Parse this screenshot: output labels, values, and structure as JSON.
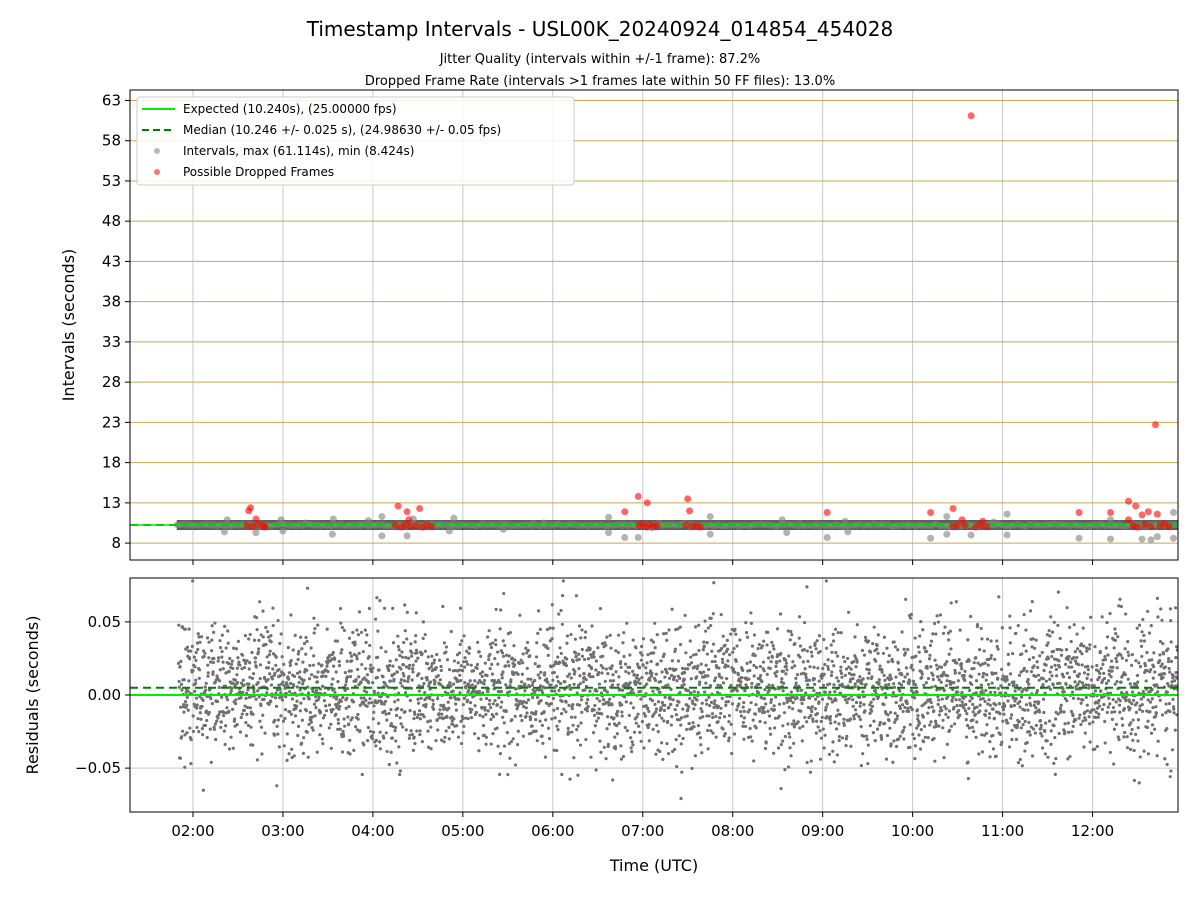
{
  "chart_data": {
    "type": "scatter",
    "title": "Timestamp Intervals - USL00K_20240924_014854_454028",
    "subtitle_lines": [
      "Jitter Quality (intervals within +/-1 frame): 87.2%",
      "Dropped Frame Rate (intervals >1 frames late within 50 FF files): 13.0%"
    ],
    "xlabel": "Time (UTC)",
    "x_ticks": [
      "02:00",
      "03:00",
      "04:00",
      "05:00",
      "06:00",
      "07:00",
      "08:00",
      "09:00",
      "10:00",
      "11:00",
      "12:00"
    ],
    "x_range_hours": [
      1.3,
      12.95
    ],
    "top_panel": {
      "ylabel": "Intervals (seconds)",
      "ylim": [
        5.9,
        64.3
      ],
      "yticks": [
        8,
        13,
        18,
        23,
        28,
        33,
        38,
        43,
        48,
        53,
        58,
        63
      ],
      "grid": true,
      "legend_position": "upper-left",
      "legend": [
        "Expected (10.240s), (25.00000 fps)",
        "Median (10.246 +/- 0.025 s), (24.98630 +/- 0.05 fps)",
        "Intervals, max (61.114s), min (8.424s)",
        "Possible Dropped Frames"
      ],
      "expected_value": 10.24,
      "median_value": 10.246,
      "series_start": 1.82,
      "series_end": 12.95,
      "sample_step_hours": 0.002844,
      "interval_outliers": [
        {
          "t": 2.35,
          "v": 9.4
        },
        {
          "t": 2.38,
          "v": 10.9
        },
        {
          "t": 2.7,
          "v": 9.3
        },
        {
          "t": 2.98,
          "v": 10.9
        },
        {
          "t": 3.0,
          "v": 9.5
        },
        {
          "t": 3.25,
          "v": 10.5
        },
        {
          "t": 3.55,
          "v": 9.1
        },
        {
          "t": 3.56,
          "v": 11.0
        },
        {
          "t": 3.95,
          "v": 10.8
        },
        {
          "t": 4.1,
          "v": 8.9
        },
        {
          "t": 4.1,
          "v": 11.3
        },
        {
          "t": 4.38,
          "v": 8.9
        },
        {
          "t": 4.45,
          "v": 11.0
        },
        {
          "t": 4.85,
          "v": 9.5
        },
        {
          "t": 4.9,
          "v": 11.1
        },
        {
          "t": 5.45,
          "v": 9.7
        },
        {
          "t": 5.9,
          "v": 10.5
        },
        {
          "t": 6.62,
          "v": 9.3
        },
        {
          "t": 6.62,
          "v": 11.2
        },
        {
          "t": 6.8,
          "v": 8.7
        },
        {
          "t": 6.95,
          "v": 8.7
        },
        {
          "t": 7.1,
          "v": 9.9
        },
        {
          "t": 7.75,
          "v": 9.1
        },
        {
          "t": 7.75,
          "v": 11.3
        },
        {
          "t": 8.55,
          "v": 10.9
        },
        {
          "t": 8.6,
          "v": 9.3
        },
        {
          "t": 9.05,
          "v": 8.7
        },
        {
          "t": 9.25,
          "v": 10.7
        },
        {
          "t": 9.28,
          "v": 9.4
        },
        {
          "t": 9.95,
          "v": 10.3
        },
        {
          "t": 10.2,
          "v": 8.6
        },
        {
          "t": 10.38,
          "v": 9.1
        },
        {
          "t": 10.38,
          "v": 11.3
        },
        {
          "t": 10.65,
          "v": 9.0
        },
        {
          "t": 10.9,
          "v": 10.6
        },
        {
          "t": 11.05,
          "v": 9.0
        },
        {
          "t": 11.05,
          "v": 11.6
        },
        {
          "t": 11.85,
          "v": 8.6
        },
        {
          "t": 12.2,
          "v": 8.5
        },
        {
          "t": 12.2,
          "v": 10.9
        },
        {
          "t": 12.55,
          "v": 8.5
        },
        {
          "t": 12.65,
          "v": 8.4
        },
        {
          "t": 12.72,
          "v": 8.8
        },
        {
          "t": 12.9,
          "v": 8.6
        },
        {
          "t": 12.9,
          "v": 11.8
        }
      ],
      "dropped_frames": [
        {
          "t": 2.62,
          "v": 12.0
        },
        {
          "t": 2.64,
          "v": 12.4
        },
        {
          "t": 2.7,
          "v": 11.0
        },
        {
          "t": 2.6,
          "v": 10.2
        },
        {
          "t": 2.66,
          "v": 10.1
        },
        {
          "t": 2.72,
          "v": 10.3
        },
        {
          "t": 2.78,
          "v": 10.2
        },
        {
          "t": 2.8,
          "v": 10.0
        },
        {
          "t": 4.28,
          "v": 12.6
        },
        {
          "t": 4.38,
          "v": 11.9
        },
        {
          "t": 4.4,
          "v": 10.9
        },
        {
          "t": 4.52,
          "v": 12.3
        },
        {
          "t": 4.25,
          "v": 10.2
        },
        {
          "t": 4.32,
          "v": 10.0
        },
        {
          "t": 4.36,
          "v": 10.3
        },
        {
          "t": 4.42,
          "v": 10.1
        },
        {
          "t": 4.48,
          "v": 10.2
        },
        {
          "t": 4.55,
          "v": 10.0
        },
        {
          "t": 4.6,
          "v": 10.3
        },
        {
          "t": 4.65,
          "v": 10.1
        },
        {
          "t": 6.8,
          "v": 11.9
        },
        {
          "t": 6.95,
          "v": 13.8
        },
        {
          "t": 7.05,
          "v": 13.0
        },
        {
          "t": 6.96,
          "v": 10.2
        },
        {
          "t": 7.0,
          "v": 10.4
        },
        {
          "t": 7.04,
          "v": 10.0
        },
        {
          "t": 7.08,
          "v": 10.3
        },
        {
          "t": 7.12,
          "v": 10.1
        },
        {
          "t": 7.16,
          "v": 10.2
        },
        {
          "t": 7.5,
          "v": 13.5
        },
        {
          "t": 7.52,
          "v": 12.0
        },
        {
          "t": 7.48,
          "v": 10.3
        },
        {
          "t": 7.55,
          "v": 10.1
        },
        {
          "t": 7.6,
          "v": 10.2
        },
        {
          "t": 7.64,
          "v": 10.0
        },
        {
          "t": 9.05,
          "v": 11.8
        },
        {
          "t": 10.2,
          "v": 11.8
        },
        {
          "t": 10.45,
          "v": 12.3
        },
        {
          "t": 10.55,
          "v": 10.9
        },
        {
          "t": 10.45,
          "v": 10.1
        },
        {
          "t": 10.5,
          "v": 10.3
        },
        {
          "t": 10.58,
          "v": 10.2
        },
        {
          "t": 10.65,
          "v": 61.1
        },
        {
          "t": 10.7,
          "v": 10.0
        },
        {
          "t": 10.75,
          "v": 10.3
        },
        {
          "t": 10.78,
          "v": 10.7
        },
        {
          "t": 10.82,
          "v": 10.1
        },
        {
          "t": 11.85,
          "v": 11.8
        },
        {
          "t": 12.2,
          "v": 11.8
        },
        {
          "t": 12.4,
          "v": 13.2
        },
        {
          "t": 12.48,
          "v": 12.6
        },
        {
          "t": 12.55,
          "v": 11.5
        },
        {
          "t": 12.62,
          "v": 11.9
        },
        {
          "t": 12.7,
          "v": 22.7
        },
        {
          "t": 12.72,
          "v": 11.6
        },
        {
          "t": 12.4,
          "v": 10.9
        },
        {
          "t": 12.45,
          "v": 10.2
        },
        {
          "t": 12.5,
          "v": 10.0
        },
        {
          "t": 12.58,
          "v": 10.3
        },
        {
          "t": 12.65,
          "v": 10.1
        },
        {
          "t": 12.75,
          "v": 10.2
        },
        {
          "t": 12.8,
          "v": 10.4
        },
        {
          "t": 12.85,
          "v": 10.1
        }
      ]
    },
    "bottom_panel": {
      "ylabel": "Residuals (seconds)",
      "ylim": [
        -0.08,
        0.08
      ],
      "yticks": [
        0.05,
        0.0,
        -0.05
      ],
      "ytick_labels": [
        "0.05",
        "0.00",
        "−0.05"
      ],
      "grid": true,
      "expected_line": 0.0,
      "median_line": 0.005,
      "noise_std": 0.022
    },
    "colors": {
      "expected": "#00ee00",
      "median": "#008000",
      "intervals": "#808080",
      "dropped": "#ff0000",
      "top_grid": "#c8a850",
      "vertical_grid": "#c8c8c8",
      "band_dark": "#404040"
    }
  }
}
